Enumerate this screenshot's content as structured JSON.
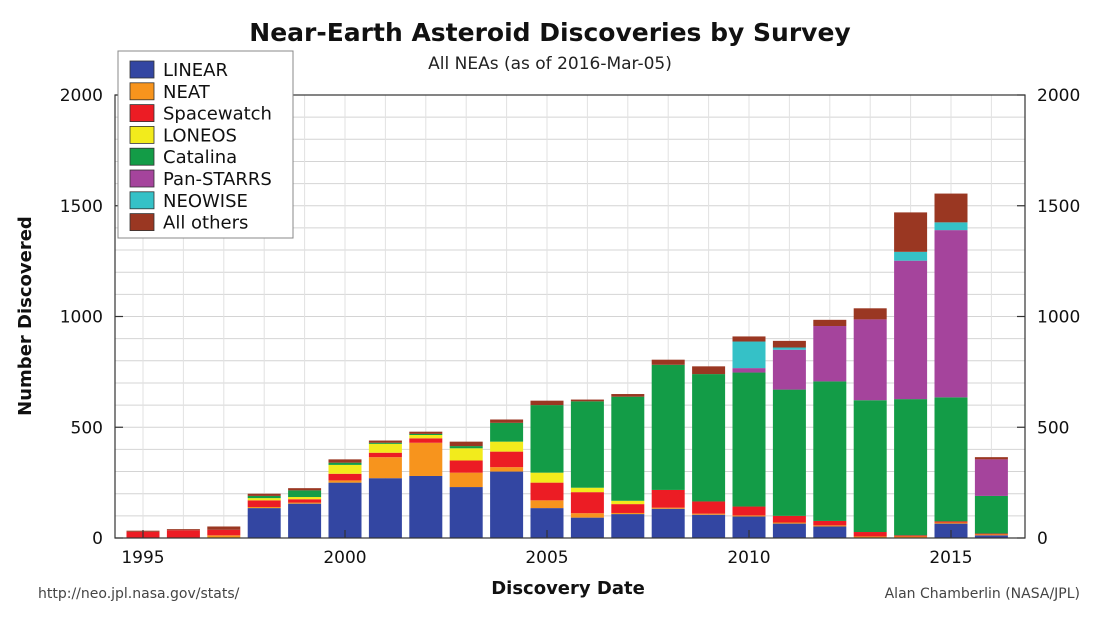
{
  "chart_data": {
    "type": "bar",
    "stacked": true,
    "title": "Near-Earth Asteroid Discoveries by Survey",
    "subtitle": "All NEAs (as of 2016-Mar-05)",
    "xlabel": "Discovery Date",
    "ylabel": "Number Discovered",
    "ylim": [
      0,
      2000
    ],
    "yticks": [
      0,
      500,
      1000,
      1500,
      2000
    ],
    "xticks": [
      "1995",
      "2000",
      "2005",
      "2010",
      "2015"
    ],
    "legend_position": "top-left",
    "grid": true,
    "categories": [
      "1995",
      "1996",
      "1997",
      "1998",
      "1999",
      "2000",
      "2001",
      "2002",
      "2003",
      "2004",
      "2005",
      "2006",
      "2007",
      "2008",
      "2009",
      "2010",
      "2011",
      "2012",
      "2013",
      "2014",
      "2015",
      "2016"
    ],
    "series": [
      {
        "name": "LINEAR",
        "color": "#3346a2",
        "values": [
          0,
          0,
          0,
          135,
          155,
          250,
          270,
          280,
          230,
          300,
          135,
          92,
          108,
          132,
          105,
          97,
          65,
          52,
          2,
          2,
          65,
          12
        ]
      },
      {
        "name": "NEAT",
        "color": "#f7941d",
        "values": [
          0,
          0,
          12,
          5,
          5,
          10,
          95,
          150,
          65,
          20,
          35,
          20,
          5,
          5,
          5,
          5,
          5,
          5,
          5,
          5,
          5,
          5
        ]
      },
      {
        "name": "Spacewatch",
        "color": "#ec1c24",
        "values": [
          28,
          35,
          25,
          30,
          15,
          30,
          20,
          20,
          55,
          70,
          80,
          95,
          40,
          80,
          55,
          40,
          30,
          20,
          20,
          5,
          5,
          3
        ]
      },
      {
        "name": "LONEOS",
        "color": "#f2eb1c",
        "values": [
          0,
          0,
          0,
          10,
          10,
          40,
          40,
          15,
          55,
          45,
          45,
          20,
          15,
          0,
          0,
          0,
          0,
          0,
          0,
          0,
          0,
          0
        ]
      },
      {
        "name": "Catalina",
        "color": "#139c47",
        "values": [
          0,
          0,
          0,
          10,
          30,
          10,
          5,
          5,
          10,
          85,
          305,
          390,
          470,
          565,
          575,
          605,
          570,
          630,
          595,
          615,
          560,
          170
        ]
      },
      {
        "name": "Pan-STARRS",
        "color": "#a5449c",
        "values": [
          0,
          0,
          0,
          0,
          0,
          0,
          0,
          0,
          0,
          0,
          0,
          0,
          0,
          0,
          0,
          20,
          180,
          250,
          365,
          625,
          755,
          165
        ]
      },
      {
        "name": "NEOWISE",
        "color": "#35c1c7",
        "values": [
          0,
          0,
          0,
          0,
          0,
          0,
          0,
          0,
          0,
          0,
          0,
          0,
          0,
          0,
          0,
          120,
          10,
          0,
          0,
          40,
          35,
          0
        ]
      },
      {
        "name": "All others",
        "color": "#9a3722",
        "values": [
          5,
          5,
          15,
          10,
          10,
          15,
          10,
          10,
          20,
          15,
          20,
          8,
          12,
          23,
          35,
          23,
          30,
          28,
          50,
          178,
          130,
          10
        ]
      }
    ]
  },
  "footer": {
    "source_url": "http://neo.jpl.nasa.gov/stats/",
    "credit": "Alan Chamberlin (NASA/JPL)"
  }
}
